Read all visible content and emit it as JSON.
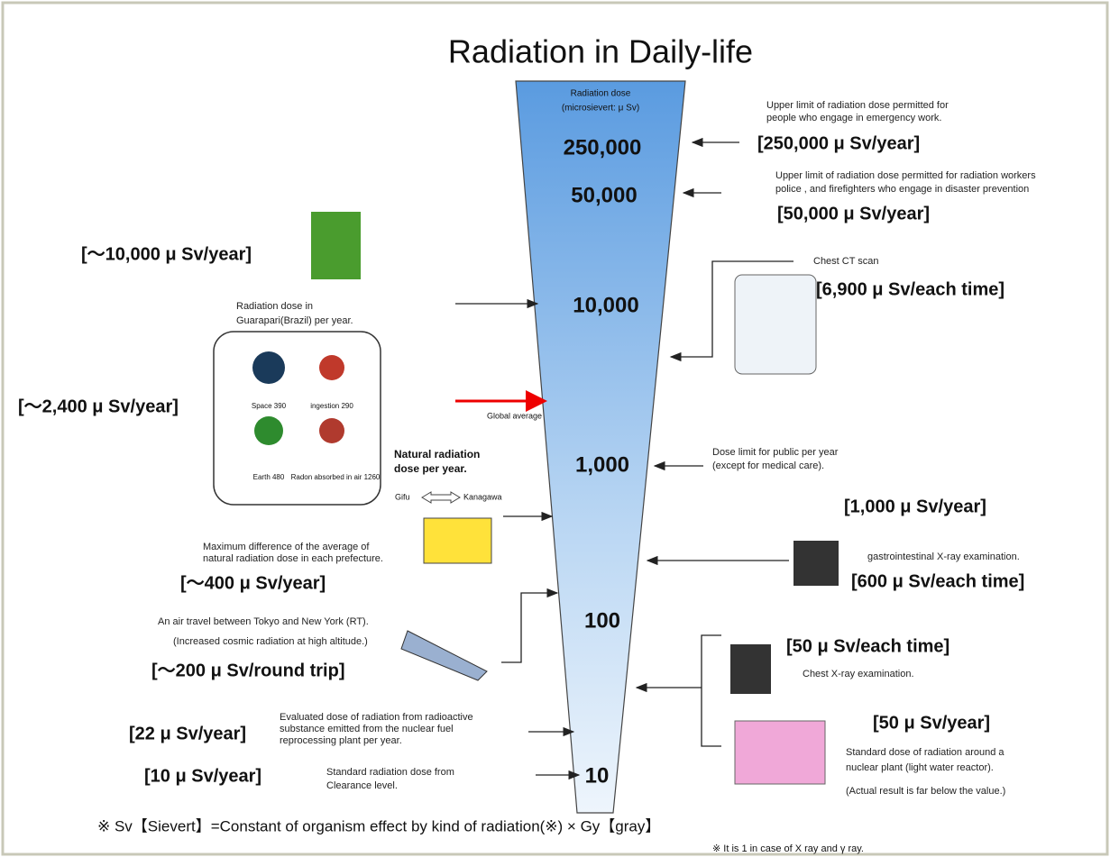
{
  "title": "Radiation in Daily-life",
  "scale": {
    "heading": "Radiation dose",
    "unit": "(microsievert: μ Sv)",
    "marks": [
      "250,000",
      "50,000",
      "10,000",
      "1,000",
      "100",
      "10"
    ]
  },
  "right": [
    {
      "desc": [
        "Upper limit of radiation dose permitted for",
        "people who engage in emergency work."
      ],
      "value": "[250,000 μ Sv/year]"
    },
    {
      "desc": [
        "Upper limit of radiation dose permitted for radiation workers",
        "police , and firefighters who engage in  disaster prevention"
      ],
      "value": "[50,000 μ Sv/year]"
    },
    {
      "desc": [
        "Chest CT scan"
      ],
      "value": "[6,900 μ Sv/each time]"
    },
    {
      "desc": [
        "Dose limit for public per year",
        "(except for medical care)."
      ],
      "value": "[1,000 μ Sv/year]"
    },
    {
      "desc": [
        "gastrointestinal X-ray examination."
      ],
      "value": "[600 μ Sv/each time]"
    },
    {
      "desc": [
        "Chest X-ray examination."
      ],
      "value": "[50 μ Sv/each time]"
    },
    {
      "desc": [
        "Standard dose of radiation around a",
        "nuclear plant (light water reactor).",
        "(Actual result is far below the value.)"
      ],
      "value": "[50 μ Sv/year]"
    }
  ],
  "left": [
    {
      "desc": [
        "Radiation dose in",
        "Guarapari(Brazil) per year."
      ],
      "value": "[～10,000 μ Sv/year]"
    },
    {
      "desc": [
        "Natural radiation",
        "dose per year."
      ],
      "value": "[～2,400 μ Sv/year]",
      "note": "Global average",
      "items": [
        "Space 390",
        "ingestion 290",
        "Earth 480",
        "Radon absorbed in air 1260"
      ]
    },
    {
      "desc": [
        "Maximum difference of the average of",
        "natural radiation dose in each prefecture."
      ],
      "value": "[～400 μ Sv/year]",
      "from": "Gifu",
      "to": "Kanagawa"
    },
    {
      "desc": [
        "An air travel between Tokyo and New York (RT).",
        "(Increased cosmic radiation at high altitude.)"
      ],
      "value": "[～200 μ Sv/round trip]"
    },
    {
      "desc": [
        "Evaluated dose of radiation from radioactive",
        "substance emitted from the nuclear fuel",
        "reprocessing plant per year."
      ],
      "value": "[22 μ Sv/year]"
    },
    {
      "desc": [
        "Standard radiation dose from",
        "Clearance level."
      ],
      "value": "[10 μ Sv/year]"
    }
  ],
  "footer": {
    "formula": "※  Sv【Sievert】=Constant of organism effect by kind of radiation(※) × Gy【gray】",
    "note": "※ It is 1 in case of  X ray and  γ ray."
  }
}
